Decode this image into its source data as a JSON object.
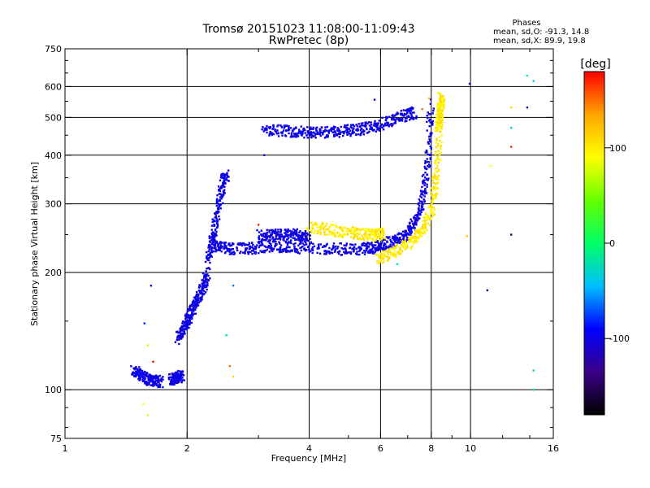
{
  "chart_data": {
    "type": "scatter",
    "title": "Tromsø 20151023 11:08:00-11:09:43",
    "subtitle": "RwPretec (8p)",
    "xlabel": "Frequency [MHz]",
    "ylabel": "Stationary phase Virtual Height [km]",
    "x_scale": "log2",
    "y_scale": "log",
    "xlim": [
      1,
      16
    ],
    "ylim": [
      75,
      750
    ],
    "x_ticks": [
      1,
      2,
      4,
      6,
      8,
      10,
      16
    ],
    "y_ticks": [
      75,
      100,
      200,
      300,
      400,
      500,
      600,
      750
    ],
    "grid": true,
    "stats": {
      "heading": "Phases",
      "line1": "mean, sd,O: -91.3, 14.8",
      "line2": "mean, sd,X:  89.9, 19.8"
    },
    "colorbar": {
      "label": "[deg]",
      "range": [
        -180,
        180
      ],
      "ticks": [
        100,
        0,
        -100
      ],
      "colors": [
        "#000000",
        "#3a0088",
        "#0000ff",
        "#00bfff",
        "#00ff66",
        "#66ff00",
        "#ffff00",
        "#ffa500",
        "#ff0000"
      ]
    },
    "series": [
      {
        "mode": "O",
        "phase": -100,
        "segments": [
          {
            "x": [
              1.47,
              1.52,
              1.57,
              1.62,
              1.67,
              1.72
            ],
            "y": [
              112,
              110,
              108,
              106,
              105,
              105
            ]
          },
          {
            "x": [
              1.82,
              1.86,
              1.9,
              1.94
            ],
            "y": [
              106,
              107,
              108,
              108
            ]
          },
          {
            "x": [
              1.9,
              1.95,
              2.0,
              2.05,
              2.1,
              2.15,
              2.2,
              2.25
            ],
            "y": [
              135,
              142,
              150,
              158,
              166,
              175,
              185,
              200
            ]
          },
          {
            "x": [
              2.25,
              2.3,
              2.35,
              2.4,
              2.45,
              2.5
            ],
            "y": [
              215,
              240,
              265,
              300,
              340,
              355
            ]
          },
          {
            "x": [
              2.3,
              2.4,
              2.55,
              2.8,
              3.0,
              3.3,
              3.6,
              4.0,
              4.5,
              5.0,
              5.5,
              5.8,
              6.1,
              6.5,
              6.9,
              7.2,
              7.5,
              7.7,
              7.85,
              8.0
            ],
            "y": [
              235,
              232,
              230,
              230,
              232,
              233,
              232,
              231,
              230,
              229,
              230,
              232,
              236,
              242,
              250,
              262,
              285,
              330,
              400,
              540
            ]
          },
          {
            "x": [
              3.1,
              3.4,
              3.7,
              4.0,
              4.3,
              4.7,
              5.1,
              5.5,
              5.9,
              6.4,
              6.9,
              7.3
            ],
            "y": [
              462,
              462,
              460,
              458,
              458,
              460,
              463,
              468,
              476,
              490,
              505,
              515
            ]
          },
          {
            "x": [
              3.0,
              3.2,
              3.4,
              3.6,
              3.8,
              4.0
            ],
            "y": [
              248,
              249,
              250,
              250,
              249,
              248
            ]
          }
        ]
      },
      {
        "mode": "X",
        "phase": 100,
        "segments": [
          {
            "x": [
              4.0,
              4.4,
              4.8,
              5.2,
              5.6,
              5.9,
              6.1
            ],
            "y": [
              262,
              258,
              255,
              252,
              250,
              250,
              252
            ]
          },
          {
            "x": [
              5.9,
              6.3,
              6.8,
              7.3,
              7.7,
              8.0,
              8.2,
              8.35,
              8.45
            ],
            "y": [
              215,
              222,
              232,
              245,
              262,
              290,
              340,
              420,
              560
            ]
          },
          {
            "x": [
              8.3,
              8.4,
              8.45,
              8.5
            ],
            "y": [
              470,
              500,
              530,
              560
            ]
          }
        ]
      }
    ],
    "outliers": [
      {
        "x": 1.63,
        "y": 185,
        "phase": -110
      },
      {
        "x": 1.57,
        "y": 148,
        "phase": -80
      },
      {
        "x": 1.6,
        "y": 130,
        "phase": 100
      },
      {
        "x": 1.65,
        "y": 118,
        "phase": 180
      },
      {
        "x": 1.56,
        "y": 92,
        "phase": 90
      },
      {
        "x": 1.6,
        "y": 86,
        "phase": 80
      },
      {
        "x": 2.5,
        "y": 138,
        "phase": -20
      },
      {
        "x": 2.55,
        "y": 115,
        "phase": 150
      },
      {
        "x": 2.6,
        "y": 108,
        "phase": 110
      },
      {
        "x": 2.6,
        "y": 185,
        "phase": -60
      },
      {
        "x": 3.0,
        "y": 265,
        "phase": 170
      },
      {
        "x": 3.1,
        "y": 400,
        "phase": -120
      },
      {
        "x": 5.8,
        "y": 555,
        "phase": -100
      },
      {
        "x": 6.6,
        "y": 210,
        "phase": -20
      },
      {
        "x": 7.6,
        "y": 525,
        "phase": 150
      },
      {
        "x": 7.9,
        "y": 560,
        "phase": 120
      },
      {
        "x": 9.95,
        "y": 610,
        "phase": -110
      },
      {
        "x": 9.8,
        "y": 248,
        "phase": 120
      },
      {
        "x": 11.0,
        "y": 180,
        "phase": -130
      },
      {
        "x": 11.2,
        "y": 375,
        "phase": 90
      },
      {
        "x": 12.6,
        "y": 470,
        "phase": -40
      },
      {
        "x": 12.6,
        "y": 420,
        "phase": 170
      },
      {
        "x": 12.6,
        "y": 250,
        "phase": -150
      },
      {
        "x": 12.6,
        "y": 530,
        "phase": 110
      },
      {
        "x": 13.8,
        "y": 640,
        "phase": -10
      },
      {
        "x": 13.8,
        "y": 530,
        "phase": -120
      },
      {
        "x": 14.3,
        "y": 620,
        "phase": -40
      },
      {
        "x": 14.3,
        "y": 112,
        "phase": -30
      },
      {
        "x": 14.3,
        "y": 100,
        "phase": -20
      }
    ]
  }
}
